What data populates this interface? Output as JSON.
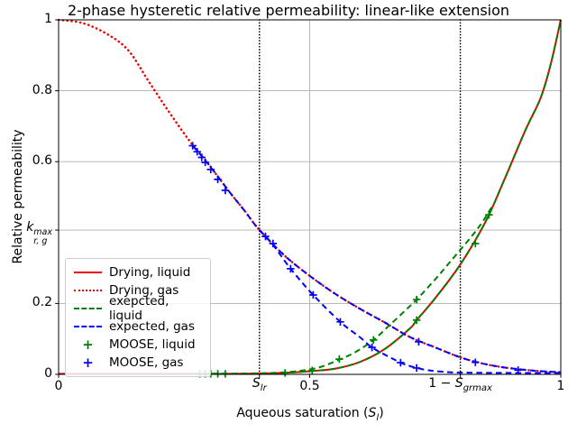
{
  "chart_data": {
    "type": "line",
    "title": "2-phase hysteretic relative permeability: linear-like extension",
    "xlabel": {
      "prefix": "Aqueous saturation (",
      "sym": "S",
      "sym_sub": "l",
      "suffix": ")"
    },
    "ylabel": "Relative permeability",
    "xlim": [
      0,
      1
    ],
    "ylim": [
      0,
      1
    ],
    "grid": {
      "color": "#b0b0b0",
      "x": [
        0.5
      ],
      "y": [
        0.2,
        0.407,
        0.6,
        0.8
      ]
    },
    "xticks": [
      {
        "v": 0,
        "label": "0"
      },
      {
        "v": 0.4,
        "math": {
          "base": "S",
          "sub": "lr"
        }
      },
      {
        "v": 0.5,
        "label": "0.5"
      },
      {
        "v": 0.8,
        "math": {
          "prefix": "1 − ",
          "base": "S",
          "sub": "grmax"
        }
      },
      {
        "v": 1,
        "label": "1"
      }
    ],
    "yticks": [
      {
        "v": 0,
        "label": "0"
      },
      {
        "v": 0.2,
        "label": "0.2"
      },
      {
        "v": 0.407,
        "math": {
          "base": "k",
          "sub": "r, g",
          "sup": "max"
        }
      },
      {
        "v": 0.6,
        "label": "0.6"
      },
      {
        "v": 0.8,
        "label": "0.8"
      },
      {
        "v": 1,
        "label": "1"
      }
    ],
    "vlines": [
      {
        "x": 0.4,
        "style": "dotted",
        "color": "#000000",
        "name": "S_lr"
      },
      {
        "x": 0.8,
        "style": "dotted",
        "color": "#000000",
        "name": "1-S_grmax"
      }
    ],
    "series": [
      {
        "id": "drying-liquid",
        "color": "#ee0000",
        "style": "solid",
        "width": 2,
        "points": [
          [
            0,
            0.0015
          ],
          [
            0.1,
            0.0015
          ],
          [
            0.2,
            0.0015
          ],
          [
            0.3,
            0.0015
          ],
          [
            0.38,
            0.0018
          ],
          [
            0.42,
            0.003
          ],
          [
            0.46,
            0.005
          ],
          [
            0.5,
            0.009
          ],
          [
            0.55,
            0.016
          ],
          [
            0.6,
            0.035
          ],
          [
            0.65,
            0.072
          ],
          [
            0.7,
            0.13
          ],
          [
            0.713,
            0.153
          ],
          [
            0.75,
            0.215
          ],
          [
            0.8,
            0.31
          ],
          [
            0.85,
            0.43
          ],
          [
            0.887,
            0.547
          ],
          [
            0.93,
            0.69
          ],
          [
            0.96,
            0.78
          ],
          [
            0.98,
            0.875
          ],
          [
            1.0,
            1.0
          ]
        ]
      },
      {
        "id": "drying-gas",
        "color": "#ee0000",
        "style": "dotted",
        "width": 2,
        "points": [
          [
            0,
            1.0
          ],
          [
            0.05,
            0.99
          ],
          [
            0.1,
            0.957
          ],
          [
            0.14,
            0.912
          ],
          [
            0.18,
            0.825
          ],
          [
            0.22,
            0.74
          ],
          [
            0.26,
            0.66
          ],
          [
            0.3,
            0.59
          ],
          [
            0.34,
            0.515
          ],
          [
            0.37,
            0.462
          ],
          [
            0.4,
            0.407
          ],
          [
            0.45,
            0.335
          ],
          [
            0.5,
            0.278
          ],
          [
            0.55,
            0.228
          ],
          [
            0.6,
            0.185
          ],
          [
            0.65,
            0.146
          ],
          [
            0.7,
            0.105
          ],
          [
            0.75,
            0.076
          ],
          [
            0.8,
            0.048
          ],
          [
            0.84,
            0.032
          ],
          [
            0.88,
            0.021
          ],
          [
            0.92,
            0.014
          ],
          [
            0.96,
            0.009
          ],
          [
            1.0,
            0.006
          ]
        ]
      },
      {
        "id": "expected-liquid-follow",
        "color": "#008000",
        "style": "dashed",
        "width": 2,
        "points": [
          [
            0.267,
            0.0015
          ],
          [
            0.35,
            0.0017
          ],
          [
            0.4,
            0.0025
          ],
          [
            0.46,
            0.005
          ],
          [
            0.5,
            0.009
          ],
          [
            0.55,
            0.016
          ],
          [
            0.6,
            0.035
          ],
          [
            0.65,
            0.072
          ],
          [
            0.7,
            0.13
          ],
          [
            0.713,
            0.153
          ],
          [
            0.75,
            0.215
          ],
          [
            0.8,
            0.31
          ],
          [
            0.85,
            0.43
          ],
          [
            0.887,
            0.547
          ],
          [
            0.93,
            0.69
          ],
          [
            0.96,
            0.78
          ],
          [
            0.98,
            0.875
          ],
          [
            1.0,
            1.0
          ]
        ]
      },
      {
        "id": "expected-liquid-extension",
        "color": "#008000",
        "style": "dashed",
        "width": 2,
        "points": [
          [
            0.267,
            0.0015
          ],
          [
            0.35,
            0.002
          ],
          [
            0.4,
            0.003
          ],
          [
            0.44,
            0.005
          ],
          [
            0.48,
            0.01
          ],
          [
            0.52,
            0.02
          ],
          [
            0.556,
            0.04
          ],
          [
            0.59,
            0.062
          ],
          [
            0.627,
            0.097
          ],
          [
            0.66,
            0.14
          ],
          [
            0.7,
            0.193
          ],
          [
            0.713,
            0.211
          ],
          [
            0.75,
            0.268
          ],
          [
            0.78,
            0.318
          ],
          [
            0.82,
            0.385
          ],
          [
            0.845,
            0.432
          ],
          [
            0.865,
            0.478
          ]
        ]
      },
      {
        "id": "expected-gas-follow",
        "color": "#0000ff",
        "style": "dashed",
        "width": 2,
        "points": [
          [
            0.267,
            0.645
          ],
          [
            0.3,
            0.59
          ],
          [
            0.34,
            0.515
          ],
          [
            0.37,
            0.462
          ],
          [
            0.4,
            0.407
          ],
          [
            0.45,
            0.335
          ],
          [
            0.5,
            0.278
          ],
          [
            0.55,
            0.228
          ],
          [
            0.6,
            0.185
          ],
          [
            0.65,
            0.146
          ],
          [
            0.7,
            0.105
          ],
          [
            0.75,
            0.076
          ],
          [
            0.8,
            0.048
          ],
          [
            0.84,
            0.032
          ],
          [
            0.88,
            0.021
          ],
          [
            0.92,
            0.014
          ],
          [
            0.96,
            0.009
          ],
          [
            1.0,
            0.006
          ]
        ]
      },
      {
        "id": "expected-gas-extension",
        "color": "#0000ff",
        "style": "dashed",
        "width": 2,
        "points": [
          [
            0.4,
            0.407
          ],
          [
            0.425,
            0.369
          ],
          [
            0.462,
            0.298
          ],
          [
            0.507,
            0.224
          ],
          [
            0.561,
            0.148
          ],
          [
            0.6,
            0.105
          ],
          [
            0.624,
            0.076
          ],
          [
            0.66,
            0.048
          ],
          [
            0.69,
            0.028
          ],
          [
            0.726,
            0.014
          ],
          [
            0.76,
            0.008
          ],
          [
            0.8,
            0.005
          ],
          [
            0.9,
            0.004
          ],
          [
            1.0,
            0.004
          ]
        ]
      },
      {
        "id": "moose-liquid",
        "color": "#008000",
        "style": "plus",
        "points": [
          [
            0.281,
            0.0015
          ],
          [
            0.292,
            0.0015
          ],
          [
            0.303,
            0.0015
          ],
          [
            0.317,
            0.0015
          ],
          [
            0.332,
            0.0015
          ],
          [
            0.451,
            0.004
          ],
          [
            0.505,
            0.011
          ],
          [
            0.559,
            0.043
          ],
          [
            0.627,
            0.097
          ],
          [
            0.713,
            0.153
          ],
          [
            0.713,
            0.211
          ],
          [
            0.83,
            0.369
          ],
          [
            0.857,
            0.45
          ]
        ]
      },
      {
        "id": "moose-gas",
        "color": "#0000ff",
        "style": "plus",
        "points": [
          [
            0.267,
            0.645
          ],
          [
            0.276,
            0.628
          ],
          [
            0.285,
            0.612
          ],
          [
            0.292,
            0.598
          ],
          [
            0.303,
            0.578
          ],
          [
            0.317,
            0.55
          ],
          [
            0.332,
            0.519
          ],
          [
            0.412,
            0.389
          ],
          [
            0.427,
            0.369
          ],
          [
            0.462,
            0.298
          ],
          [
            0.507,
            0.224
          ],
          [
            0.561,
            0.148
          ],
          [
            0.624,
            0.076
          ],
          [
            0.681,
            0.033
          ],
          [
            0.713,
            0.018
          ],
          [
            0.717,
            0.092
          ],
          [
            0.83,
            0.034
          ],
          [
            0.915,
            0.012
          ]
        ]
      }
    ],
    "legend": {
      "position": "lower left",
      "items": [
        {
          "label": "Drying, liquid",
          "color": "#ee0000",
          "style": "solid"
        },
        {
          "label": "Drying, gas",
          "color": "#ee0000",
          "style": "dotted"
        },
        {
          "label": "exepcted, liquid",
          "color": "#008000",
          "style": "dashed"
        },
        {
          "label": "expected, gas",
          "color": "#0000ff",
          "style": "dashed"
        },
        {
          "label": "MOOSE, liquid",
          "color": "#008000",
          "style": "plus"
        },
        {
          "label": "MOOSE, gas",
          "color": "#0000ff",
          "style": "plus"
        }
      ]
    }
  }
}
